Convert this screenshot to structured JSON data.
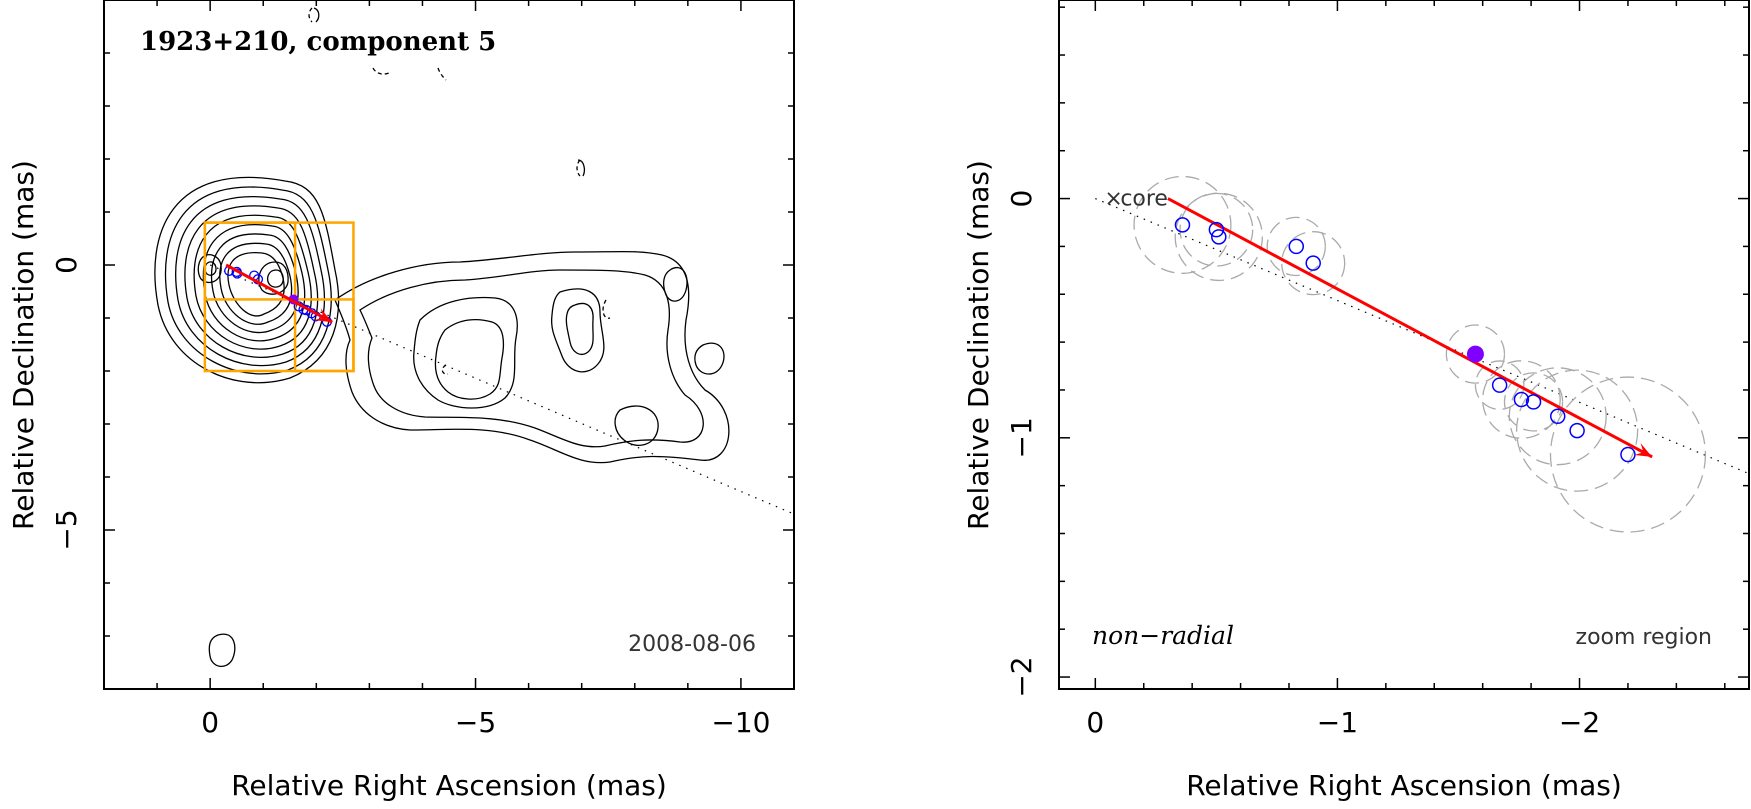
{
  "chart_data": [
    {
      "type": "contour",
      "title": "1923+210, component 5",
      "annotation_date": "2008-08-06",
      "xlabel": "Relative Right Ascension (mas)",
      "ylabel": "Relative Declination (mas)",
      "xlim": [
        2,
        -11
      ],
      "ylim": [
        -8,
        5
      ],
      "x_ticks": [
        0,
        -5,
        -10
      ],
      "x_tick_labels": [
        "0",
        "−5",
        "−10"
      ],
      "y_ticks": [
        0,
        -5
      ],
      "y_tick_labels": [
        "0",
        "−5"
      ],
      "jet_direction_arrow": {
        "start": [
          -0.3,
          0.0
        ],
        "end": [
          -2.3,
          -1.08
        ],
        "color": "#ff0000"
      },
      "radial_line": {
        "start": [
          0,
          0
        ],
        "end": [
          -11,
          -4.7
        ],
        "style": "dotted"
      },
      "components": [
        {
          "x": -0.36,
          "y": -0.11
        },
        {
          "x": -0.5,
          "y": -0.13
        },
        {
          "x": -0.51,
          "y": -0.16
        },
        {
          "x": -0.83,
          "y": -0.2
        },
        {
          "x": -0.9,
          "y": -0.27
        },
        {
          "x": -1.67,
          "y": -0.78
        },
        {
          "x": -1.76,
          "y": -0.84
        },
        {
          "x": -1.81,
          "y": -0.85
        },
        {
          "x": -1.91,
          "y": -0.91
        },
        {
          "x": -1.99,
          "y": -0.97
        },
        {
          "x": -2.2,
          "y": -1.07
        }
      ],
      "highlight_component": {
        "x": -1.57,
        "y": -0.65,
        "color": "#8000ff"
      },
      "zoom_boxes": [
        {
          "x0": 0.1,
          "x1": -2.7,
          "y0": -2.0,
          "y1": 0.8
        },
        {
          "x0": 0.1,
          "x1": -1.6,
          "y0": -0.65,
          "y1": 0.8
        },
        {
          "x0": -1.6,
          "x1": -2.7,
          "y0": -2.0,
          "y1": -0.65
        }
      ]
    },
    {
      "type": "scatter",
      "corner_label": "non−radial",
      "region_label": "zoom region",
      "core_label": "core",
      "xlabel": "Relative Right Ascension (mas)",
      "ylabel": "Relative Declination (mas)",
      "xlim": [
        0.15,
        -2.7
      ],
      "ylim": [
        -2.05,
        0.83
      ],
      "x_ticks": [
        0,
        -1,
        -2
      ],
      "x_tick_labels": [
        "0",
        "−1",
        "−2"
      ],
      "y_ticks": [
        0,
        -1,
        -2
      ],
      "y_tick_labels": [
        "0",
        "−1",
        "−2"
      ],
      "core": {
        "x": 0,
        "y": 0
      },
      "components": [
        {
          "x": -0.36,
          "y": -0.11,
          "r": 0.2
        },
        {
          "x": -0.5,
          "y": -0.13,
          "r": 0.15
        },
        {
          "x": -0.51,
          "y": -0.16,
          "r": 0.18
        },
        {
          "x": -0.83,
          "y": -0.2,
          "r": 0.12
        },
        {
          "x": -0.9,
          "y": -0.27,
          "r": 0.13
        },
        {
          "x": -1.67,
          "y": -0.78,
          "r": 0.1
        },
        {
          "x": -1.76,
          "y": -0.84,
          "r": 0.16
        },
        {
          "x": -1.81,
          "y": -0.85,
          "r": 0.12
        },
        {
          "x": -1.91,
          "y": -0.91,
          "r": 0.2
        },
        {
          "x": -1.99,
          "y": -0.97,
          "r": 0.25
        },
        {
          "x": -2.2,
          "y": -1.07,
          "r": 0.32
        }
      ],
      "highlight_component": {
        "x": -1.57,
        "y": -0.65,
        "r": 0.12,
        "color": "#8000ff"
      },
      "jet_direction_arrow": {
        "start": [
          -0.3,
          0.0
        ],
        "end": [
          -2.3,
          -1.08
        ],
        "color": "#ff0000"
      },
      "radial_line": {
        "start": [
          0,
          0
        ],
        "end": [
          -2.7,
          -1.15
        ],
        "style": "dotted"
      }
    }
  ]
}
